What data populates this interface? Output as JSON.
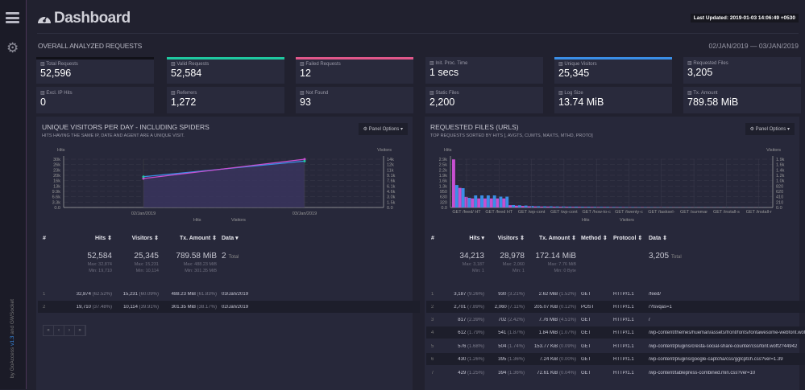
{
  "sidebar": {
    "credit_prefix": "by GoAccess",
    "credit_version": "v1.3",
    "credit_suffix": "and GWSocket"
  },
  "header": {
    "title": "Dashboard",
    "last_updated": "Last Updated: 2019-01-03 14:06:49 +0530",
    "section": "OVERALL ANALYZED REQUESTS",
    "date_range": "02/JAN/2019 — 03/JAN/2019"
  },
  "cards": [
    {
      "label": "Total Requests",
      "value": "52,596",
      "accent": "#111118"
    },
    {
      "label": "Valid Requests",
      "value": "52,584",
      "accent": "#1fc8a0"
    },
    {
      "label": "Failed Requests",
      "value": "12",
      "accent": "#e0578a"
    },
    {
      "label": "Init. Proc. Time",
      "value": "1 secs",
      "accent": ""
    },
    {
      "label": "Unique Visitors",
      "value": "25,345",
      "accent": "#3a8ee6"
    },
    {
      "label": "Requested Files",
      "value": "3,205",
      "accent": ""
    },
    {
      "label": "Excl. IP Hits",
      "value": "0"
    },
    {
      "label": "Referrers",
      "value": "1,272"
    },
    {
      "label": "Not Found",
      "value": "93"
    },
    {
      "label": "Static Files",
      "value": "2,200"
    },
    {
      "label": "Log Size",
      "value": "13.74 MiB"
    },
    {
      "label": "Tx. Amount",
      "value": "789.58 MiB"
    }
  ],
  "visitors_panel": {
    "title": "UNIQUE VISITORS PER DAY - INCLUDING SPIDERS",
    "subtitle": "HITS HAVING THE SAME IP, DATE AND AGENT ARE A UNIQUE VISIT.",
    "options": "Panel Options",
    "headers": [
      "#",
      "Hits ⇕",
      "Visitors ⇕",
      "Tx. Amount ⇕",
      "Data ▾"
    ],
    "summary": {
      "hits": "52,584",
      "hits_max": "Max: 32,874",
      "hits_min": "Min: 19,710",
      "visitors": "25,345",
      "visitors_max": "Max: 15,231",
      "visitors_min": "Min: 10,114",
      "tx": "789.58 MiB",
      "tx_max": "Max: 488.23 MiB",
      "tx_min": "Min: 301.35 MiB",
      "data": "2",
      "data_suffix": "Total"
    },
    "rows": [
      [
        "1",
        "32,874",
        "(62.52%)",
        "15,231",
        "(60.09%)",
        "488.23 MiB",
        "(61.83%)",
        "03/Jan/2019"
      ],
      [
        "2",
        "19,710",
        "(37.48%)",
        "10,114",
        "(39.91%)",
        "301.35 MiB",
        "(38.17%)",
        "02/Jan/2019"
      ]
    ],
    "pager": [
      "«",
      "‹",
      "›",
      "»"
    ]
  },
  "files_panel": {
    "title": "REQUESTED FILES (URLS)",
    "subtitle": "TOP REQUESTS SORTED BY HITS [, AVGTS, CUMTS, MAXTS, MTHD, PROTO]",
    "options": "Panel Options",
    "headers": [
      "#",
      "Hits ▾",
      "Visitors ⇕",
      "Tx. Amount ⇕",
      "Method ⇕",
      "Protocol ⇕",
      "Data ⇕"
    ],
    "summary": {
      "hits": "34,213",
      "hits_max": "Max: 3,187",
      "hits_min": "Min: 1",
      "visitors": "28,978",
      "visitors_max": "Max: 2,060",
      "visitors_min": "Min: 1",
      "tx": "172.14 MiB",
      "tx_max": "Max: 7.76 MiB",
      "tx_min": "Min: 0 Byte",
      "data": "3,205",
      "data_suffix": "Total"
    },
    "rows": [
      [
        "1",
        "3,187",
        "(9.26%)",
        "930",
        "(3.21%)",
        "2.62 MiB",
        "(1.52%)",
        "GET",
        "HTTP/1.1",
        "/feed/"
      ],
      [
        "2",
        "2,701",
        "(7.89%)",
        "2,060",
        "(7.11%)",
        "205.07 KiB",
        "(0.12%)",
        "POST",
        "HTTP/1.1",
        "/?lsvqas=1"
      ],
      [
        "3",
        "817",
        "(2.39%)",
        "702",
        "(2.42%)",
        "7.76 MiB",
        "(4.51%)",
        "GET",
        "HTTP/1.1",
        "/"
      ],
      [
        "4",
        "612",
        "(1.79%)",
        "541",
        "(1.87%)",
        "1.84 MiB",
        "(1.07%)",
        "GET",
        "HTTP/1.1",
        "/wp-content/themes/hueman/assets/front/fonts/fontawesome-webfont.woff2"
      ],
      [
        "5",
        "576",
        "(1.68%)",
        "504",
        "(1.74%)",
        "153.77 KiB",
        "(0.09%)",
        "GET",
        "HTTP/1.1",
        "/wp-content/plugins/cresta-social-share-counter/css/font.woff2?44942"
      ],
      [
        "6",
        "430",
        "(1.26%)",
        "395",
        "(1.36%)",
        "7.24 KiB",
        "(0.00%)",
        "GET",
        "HTTP/1.1",
        "/wp-content/plugins/google-captcha/css/gglcptch.css?ver=1.39"
      ],
      [
        "7",
        "429",
        "(1.25%)",
        "394",
        "(1.36%)",
        "72.61 KiB",
        "(0.04%)",
        "GET",
        "HTTP/1.1",
        "/wp-content/tablepress-combined.min.css?ver=10"
      ]
    ]
  },
  "chart_data": [
    {
      "type": "area",
      "title": "",
      "x": [
        "02/Jan/2019",
        "03/Jan/2019"
      ],
      "series": [
        {
          "name": "Hits",
          "values": [
            19710,
            32874
          ],
          "color": "#c74fd0",
          "axis": "left"
        },
        {
          "name": "Visitors",
          "values": [
            10114,
            15231
          ],
          "color": "#3a8ee6",
          "axis": "right"
        }
      ],
      "ylabel_left": "Hits",
      "ylabel_right": "Visitors",
      "yticks_left": [
        "0.0",
        "3.3k",
        "6.6k",
        "9.9k",
        "13k",
        "16k",
        "20k",
        "23k",
        "26k",
        "30k"
      ],
      "yticks_right": [
        "0.0",
        "1.5k",
        "3.0k",
        "4.6k",
        "6.1k",
        "7.6k",
        "9.1k",
        "11k",
        "12k",
        "14k"
      ],
      "xtick_labels": [
        "02/Jan/2019",
        "03/Jan/2019"
      ],
      "legend": [
        "Hits",
        "Visitors"
      ],
      "legend_position": "bottom",
      "grid": true
    },
    {
      "type": "bar",
      "title": "",
      "hits": [
        3187,
        1300,
        700,
        600,
        600,
        600,
        600,
        600,
        600,
        150,
        120,
        100,
        80,
        70,
        60,
        60,
        55,
        50,
        50,
        45,
        45,
        40,
        40,
        35,
        35,
        30,
        30,
        25,
        25,
        20,
        20,
        15,
        15,
        15,
        10,
        10,
        10,
        10,
        8,
        8,
        8,
        6,
        6,
        6,
        5,
        5,
        5,
        4,
        4,
        4
      ],
      "visitors": [
        930,
        800,
        400,
        500,
        500,
        500,
        500,
        450,
        450,
        100,
        90,
        80,
        60,
        50,
        45,
        45,
        40,
        40,
        35,
        35,
        30,
        30,
        28,
        25,
        25,
        22,
        20,
        18,
        18,
        15,
        15,
        12,
        12,
        10,
        8,
        8,
        8,
        8,
        6,
        6,
        6,
        5,
        5,
        5,
        4,
        4,
        4,
        3,
        3,
        3
      ],
      "ylabel_left": "Hits",
      "ylabel_right": "Visitors",
      "yticks_left": [
        "0.0",
        "320",
        "630",
        "950",
        "1.3k",
        "1.6k",
        "1.9k",
        "2.2k",
        "2.5k",
        "2.9k"
      ],
      "yticks_right": [
        "0.0",
        "210",
        "410",
        "620",
        "820",
        "1.0k",
        "1.2k",
        "1.4k",
        "1.6k",
        "1.9k"
      ],
      "xtick_labels": [
        "GET /feed/ HT",
        "GET /feed HT",
        "GET /wp-cont",
        "GET /wp-cont",
        "GET /how-to-c",
        "GET /twenty-c",
        "GET /tasksel-",
        "GET /summar",
        "GET /install-s",
        "GET /install-r"
      ],
      "legend": [
        "Hits",
        "Visitors"
      ],
      "legend_position": "bottom",
      "grid": true,
      "colors": {
        "hits": "#c74fd0",
        "visitors": "#3a8ee6"
      }
    }
  ]
}
